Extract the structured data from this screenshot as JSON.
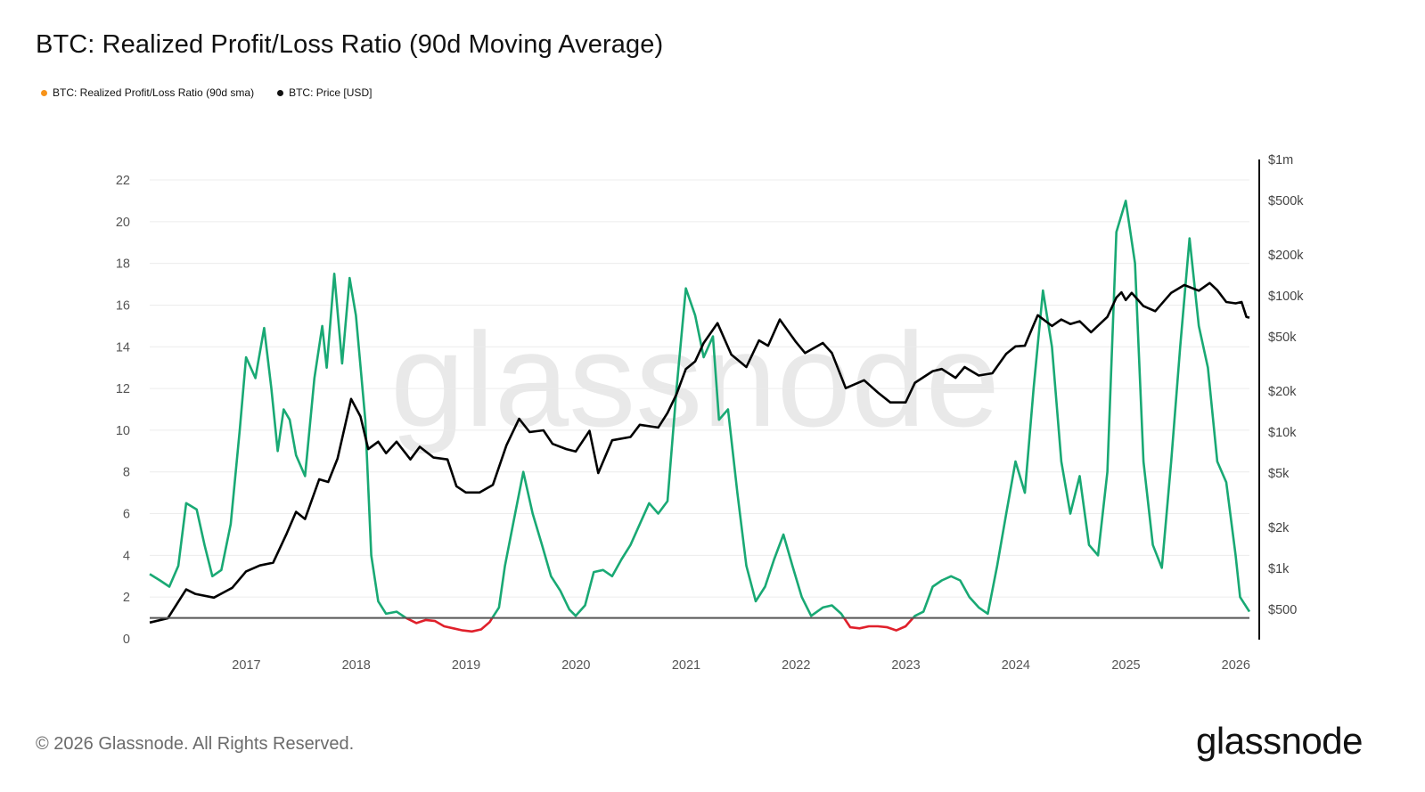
{
  "title": "BTC: Realized Profit/Loss Ratio (90d Moving Average)",
  "legend": [
    {
      "label": "BTC: Realized Profit/Loss Ratio (90d sma)",
      "color": "#f7931a"
    },
    {
      "label": "BTC: Price [USD]",
      "color": "#111111"
    }
  ],
  "watermark": "glassnode",
  "footer": "© 2026 Glassnode. All Rights Reserved.",
  "brand": "glassnode",
  "colors": {
    "profit": "#19a974",
    "loss": "#e0202b",
    "price": "#000000",
    "baseline": "#555555"
  },
  "chart_data": {
    "type": "line",
    "x_range": [
      "2016-02-15",
      "2026-02-15"
    ],
    "x_ticks": [
      "2017",
      "2018",
      "2019",
      "2020",
      "2021",
      "2022",
      "2023",
      "2024",
      "2025",
      "2026"
    ],
    "y_left": {
      "min": 0,
      "max": 22,
      "ticks": [
        0,
        2,
        4,
        6,
        8,
        10,
        12,
        14,
        16,
        18,
        20,
        22
      ],
      "grid": true
    },
    "y_right": {
      "scale": "log",
      "ticks": [
        {
          "label": "$500",
          "value": 500
        },
        {
          "label": "$1k",
          "value": 1000
        },
        {
          "label": "$2k",
          "value": 2000
        },
        {
          "label": "$5k",
          "value": 5000
        },
        {
          "label": "$10k",
          "value": 10000
        },
        {
          "label": "$20k",
          "value": 20000
        },
        {
          "label": "$50k",
          "value": 50000
        },
        {
          "label": "$100k",
          "value": 100000
        },
        {
          "label": "$200k",
          "value": 200000
        },
        {
          "label": "$500k",
          "value": 500000
        },
        {
          "label": "$1m",
          "value": 1000000
        }
      ]
    },
    "baseline": 1,
    "series": [
      {
        "name": "BTC: Realized Profit/Loss Ratio (90d sma)",
        "axis": "left",
        "points": [
          [
            "2016-02-15",
            3.1
          ],
          [
            "2016-03-20",
            2.8
          ],
          [
            "2016-04-20",
            2.5
          ],
          [
            "2016-05-20",
            3.5
          ],
          [
            "2016-06-15",
            6.5
          ],
          [
            "2016-07-20",
            6.2
          ],
          [
            "2016-08-15",
            4.5
          ],
          [
            "2016-09-10",
            3.0
          ],
          [
            "2016-10-10",
            3.3
          ],
          [
            "2016-11-10",
            5.5
          ],
          [
            "2016-12-10",
            10.0
          ],
          [
            "2016-12-31",
            13.5
          ],
          [
            "2017-01-31",
            12.5
          ],
          [
            "2017-03-01",
            14.9
          ],
          [
            "2017-03-25",
            12.0
          ],
          [
            "2017-04-15",
            9.0
          ],
          [
            "2017-05-05",
            11.0
          ],
          [
            "2017-05-25",
            10.5
          ],
          [
            "2017-06-15",
            8.8
          ],
          [
            "2017-07-15",
            7.8
          ],
          [
            "2017-08-15",
            12.5
          ],
          [
            "2017-09-10",
            15.0
          ],
          [
            "2017-09-25",
            13.0
          ],
          [
            "2017-10-20",
            17.5
          ],
          [
            "2017-11-15",
            13.2
          ],
          [
            "2017-12-10",
            17.3
          ],
          [
            "2017-12-31",
            15.5
          ],
          [
            "2018-01-31",
            10.5
          ],
          [
            "2018-02-20",
            4.0
          ],
          [
            "2018-03-15",
            1.8
          ],
          [
            "2018-04-10",
            1.2
          ],
          [
            "2018-05-15",
            1.3
          ],
          [
            "2018-06-15",
            1.0
          ],
          [
            "2018-07-20",
            0.75
          ],
          [
            "2018-08-20",
            0.9
          ],
          [
            "2018-09-20",
            0.85
          ],
          [
            "2018-10-20",
            0.6
          ],
          [
            "2018-11-20",
            0.5
          ],
          [
            "2018-12-20",
            0.4
          ],
          [
            "2019-01-20",
            0.35
          ],
          [
            "2019-02-20",
            0.45
          ],
          [
            "2019-03-20",
            0.8
          ],
          [
            "2019-04-20",
            1.5
          ],
          [
            "2019-05-10",
            3.5
          ],
          [
            "2019-06-10",
            5.8
          ],
          [
            "2019-07-10",
            8.0
          ],
          [
            "2019-08-10",
            6.0
          ],
          [
            "2019-09-10",
            4.5
          ],
          [
            "2019-10-10",
            3.0
          ],
          [
            "2019-11-10",
            2.3
          ],
          [
            "2019-12-10",
            1.4
          ],
          [
            "2019-12-31",
            1.1
          ],
          [
            "2020-01-31",
            1.6
          ],
          [
            "2020-02-29",
            3.2
          ],
          [
            "2020-03-31",
            3.3
          ],
          [
            "2020-04-30",
            3.0
          ],
          [
            "2020-05-31",
            3.8
          ],
          [
            "2020-06-30",
            4.5
          ],
          [
            "2020-07-31",
            5.5
          ],
          [
            "2020-08-31",
            6.5
          ],
          [
            "2020-09-30",
            6.0
          ],
          [
            "2020-10-31",
            6.6
          ],
          [
            "2020-11-30",
            12.0
          ],
          [
            "2020-12-31",
            16.8
          ],
          [
            "2021-01-31",
            15.5
          ],
          [
            "2021-02-28",
            13.5
          ],
          [
            "2021-03-31",
            14.5
          ],
          [
            "2021-04-20",
            10.5
          ],
          [
            "2021-05-20",
            11.0
          ],
          [
            "2021-06-20",
            7.0
          ],
          [
            "2021-07-20",
            3.5
          ],
          [
            "2021-08-20",
            1.8
          ],
          [
            "2021-09-20",
            2.5
          ],
          [
            "2021-10-20",
            3.8
          ],
          [
            "2021-11-20",
            5.0
          ],
          [
            "2021-12-20",
            3.5
          ],
          [
            "2022-01-20",
            2.0
          ],
          [
            "2022-02-20",
            1.1
          ],
          [
            "2022-03-31",
            1.5
          ],
          [
            "2022-04-30",
            1.6
          ],
          [
            "2022-05-31",
            1.2
          ],
          [
            "2022-06-30",
            0.55
          ],
          [
            "2022-07-31",
            0.5
          ],
          [
            "2022-08-31",
            0.6
          ],
          [
            "2022-09-30",
            0.6
          ],
          [
            "2022-10-31",
            0.55
          ],
          [
            "2022-11-30",
            0.4
          ],
          [
            "2022-12-31",
            0.6
          ],
          [
            "2023-01-31",
            1.1
          ],
          [
            "2023-02-28",
            1.3
          ],
          [
            "2023-03-31",
            2.5
          ],
          [
            "2023-04-30",
            2.8
          ],
          [
            "2023-05-31",
            3.0
          ],
          [
            "2023-06-30",
            2.8
          ],
          [
            "2023-07-31",
            2.0
          ],
          [
            "2023-08-31",
            1.5
          ],
          [
            "2023-09-30",
            1.2
          ],
          [
            "2023-10-31",
            3.5
          ],
          [
            "2023-11-30",
            6.0
          ],
          [
            "2023-12-31",
            8.5
          ],
          [
            "2024-01-31",
            7.0
          ],
          [
            "2024-02-29",
            12.0
          ],
          [
            "2024-03-31",
            16.7
          ],
          [
            "2024-04-30",
            14.0
          ],
          [
            "2024-05-31",
            8.5
          ],
          [
            "2024-06-30",
            6.0
          ],
          [
            "2024-07-31",
            7.8
          ],
          [
            "2024-08-31",
            4.5
          ],
          [
            "2024-09-30",
            4.0
          ],
          [
            "2024-10-31",
            8.0
          ],
          [
            "2024-11-30",
            19.5
          ],
          [
            "2024-12-31",
            21.0
          ],
          [
            "2025-01-31",
            18.0
          ],
          [
            "2025-02-28",
            8.5
          ],
          [
            "2025-03-31",
            4.5
          ],
          [
            "2025-04-30",
            3.4
          ],
          [
            "2025-05-31",
            8.5
          ],
          [
            "2025-06-30",
            14.0
          ],
          [
            "2025-07-31",
            19.2
          ],
          [
            "2025-08-31",
            15.0
          ],
          [
            "2025-09-30",
            13.0
          ],
          [
            "2025-10-31",
            8.5
          ],
          [
            "2025-11-30",
            7.5
          ],
          [
            "2025-12-31",
            4.0
          ],
          [
            "2026-01-15",
            2.0
          ],
          [
            "2026-02-15",
            1.3
          ]
        ]
      },
      {
        "name": "BTC: Price [USD]",
        "axis": "right",
        "points": [
          [
            "2016-02-15",
            400
          ],
          [
            "2016-04-15",
            430
          ],
          [
            "2016-06-15",
            700
          ],
          [
            "2016-07-15",
            650
          ],
          [
            "2016-09-15",
            610
          ],
          [
            "2016-11-15",
            720
          ],
          [
            "2016-12-31",
            950
          ],
          [
            "2017-02-15",
            1050
          ],
          [
            "2017-03-31",
            1100
          ],
          [
            "2017-05-15",
            1800
          ],
          [
            "2017-06-15",
            2600
          ],
          [
            "2017-07-15",
            2300
          ],
          [
            "2017-08-31",
            4500
          ],
          [
            "2017-09-30",
            4300
          ],
          [
            "2017-10-31",
            6400
          ],
          [
            "2017-12-15",
            17500
          ],
          [
            "2018-01-15",
            13000
          ],
          [
            "2018-02-10",
            7500
          ],
          [
            "2018-03-15",
            8500
          ],
          [
            "2018-04-10",
            7000
          ],
          [
            "2018-05-15",
            8500
          ],
          [
            "2018-06-30",
            6300
          ],
          [
            "2018-07-31",
            7800
          ],
          [
            "2018-09-15",
            6500
          ],
          [
            "2018-10-31",
            6300
          ],
          [
            "2018-11-30",
            4000
          ],
          [
            "2018-12-31",
            3600
          ],
          [
            "2019-02-15",
            3600
          ],
          [
            "2019-03-31",
            4100
          ],
          [
            "2019-05-15",
            8000
          ],
          [
            "2019-06-26",
            12500
          ],
          [
            "2019-07-31",
            10000
          ],
          [
            "2019-09-15",
            10300
          ],
          [
            "2019-10-15",
            8200
          ],
          [
            "2019-11-30",
            7500
          ],
          [
            "2019-12-31",
            7200
          ],
          [
            "2020-02-15",
            10200
          ],
          [
            "2020-03-15",
            5000
          ],
          [
            "2020-04-30",
            8700
          ],
          [
            "2020-06-30",
            9200
          ],
          [
            "2020-07-31",
            11300
          ],
          [
            "2020-09-30",
            10800
          ],
          [
            "2020-10-31",
            13800
          ],
          [
            "2020-11-30",
            19000
          ],
          [
            "2020-12-31",
            29000
          ],
          [
            "2021-01-31",
            33000
          ],
          [
            "2021-02-28",
            45000
          ],
          [
            "2021-04-15",
            63000
          ],
          [
            "2021-05-31",
            37000
          ],
          [
            "2021-07-20",
            30000
          ],
          [
            "2021-08-31",
            47000
          ],
          [
            "2021-09-30",
            43000
          ],
          [
            "2021-11-08",
            67000
          ],
          [
            "2021-12-31",
            46000
          ],
          [
            "2022-01-31",
            38000
          ],
          [
            "2022-03-31",
            45000
          ],
          [
            "2022-04-30",
            38000
          ],
          [
            "2022-06-15",
            21000
          ],
          [
            "2022-08-15",
            24000
          ],
          [
            "2022-09-30",
            19500
          ],
          [
            "2022-11-10",
            16500
          ],
          [
            "2022-12-31",
            16500
          ],
          [
            "2023-01-31",
            23000
          ],
          [
            "2023-03-31",
            28000
          ],
          [
            "2023-04-30",
            29000
          ],
          [
            "2023-06-15",
            25000
          ],
          [
            "2023-07-15",
            30000
          ],
          [
            "2023-08-31",
            26000
          ],
          [
            "2023-10-15",
            27000
          ],
          [
            "2023-11-30",
            37500
          ],
          [
            "2023-12-31",
            42500
          ],
          [
            "2024-01-31",
            43000
          ],
          [
            "2024-02-29",
            61000
          ],
          [
            "2024-03-14",
            72000
          ],
          [
            "2024-04-30",
            60000
          ],
          [
            "2024-05-31",
            67000
          ],
          [
            "2024-06-30",
            62000
          ],
          [
            "2024-07-31",
            65000
          ],
          [
            "2024-09-07",
            54000
          ],
          [
            "2024-10-31",
            70000
          ],
          [
            "2024-11-30",
            97000
          ],
          [
            "2024-12-17",
            106000
          ],
          [
            "2024-12-31",
            93000
          ],
          [
            "2025-01-20",
            105000
          ],
          [
            "2025-02-28",
            84000
          ],
          [
            "2025-04-08",
            77000
          ],
          [
            "2025-05-31",
            105000
          ],
          [
            "2025-07-14",
            120000
          ],
          [
            "2025-08-31",
            109000
          ],
          [
            "2025-10-06",
            124000
          ],
          [
            "2025-10-31",
            110000
          ],
          [
            "2025-11-30",
            90000
          ],
          [
            "2025-12-31",
            88000
          ],
          [
            "2026-01-20",
            90000
          ],
          [
            "2026-02-05",
            70000
          ],
          [
            "2026-02-15",
            69000
          ]
        ]
      }
    ]
  }
}
